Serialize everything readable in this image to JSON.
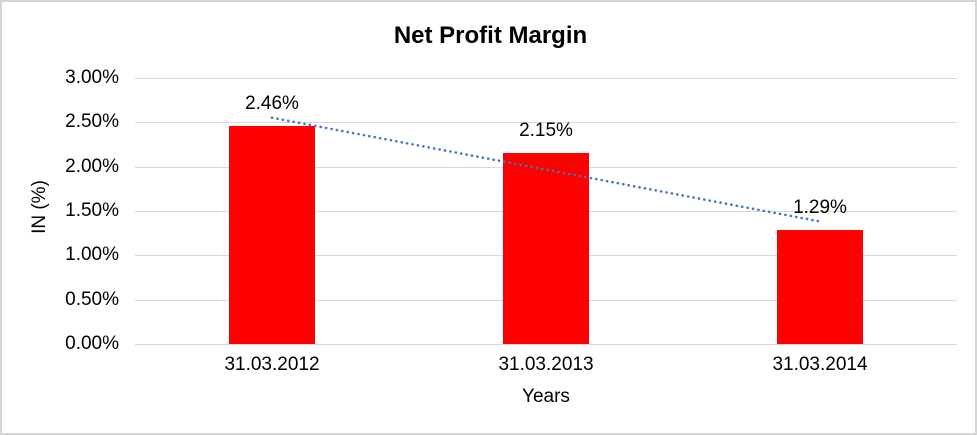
{
  "window": {
    "background": "#FFFFFF",
    "border_color": "#D5D5D5"
  },
  "chart_data": {
    "type": "bar",
    "title": "Net Profit Margin",
    "xlabel": "Years",
    "ylabel": "IN (%)",
    "categories": [
      "31.03.2012",
      "31.03.2013",
      "31.03.2014"
    ],
    "series": [
      {
        "name": "Net Profit Margin",
        "values": [
          2.46,
          2.15,
          1.29
        ]
      }
    ],
    "data_labels": [
      "2.46%",
      "2.15%",
      "1.29%"
    ],
    "y_ticks": [
      "0.00%",
      "0.50%",
      "1.00%",
      "1.50%",
      "2.00%",
      "2.50%",
      "3.00%"
    ],
    "ylim": [
      0,
      3
    ],
    "y_tick_step": 0.5,
    "grid": true,
    "legend": "none",
    "bar_color": "#FF0000",
    "gridline_color": "#D9D9D9",
    "text_color": "#000000",
    "trendline": {
      "type": "linear",
      "style": "dotted",
      "color": "#4472C4"
    }
  }
}
